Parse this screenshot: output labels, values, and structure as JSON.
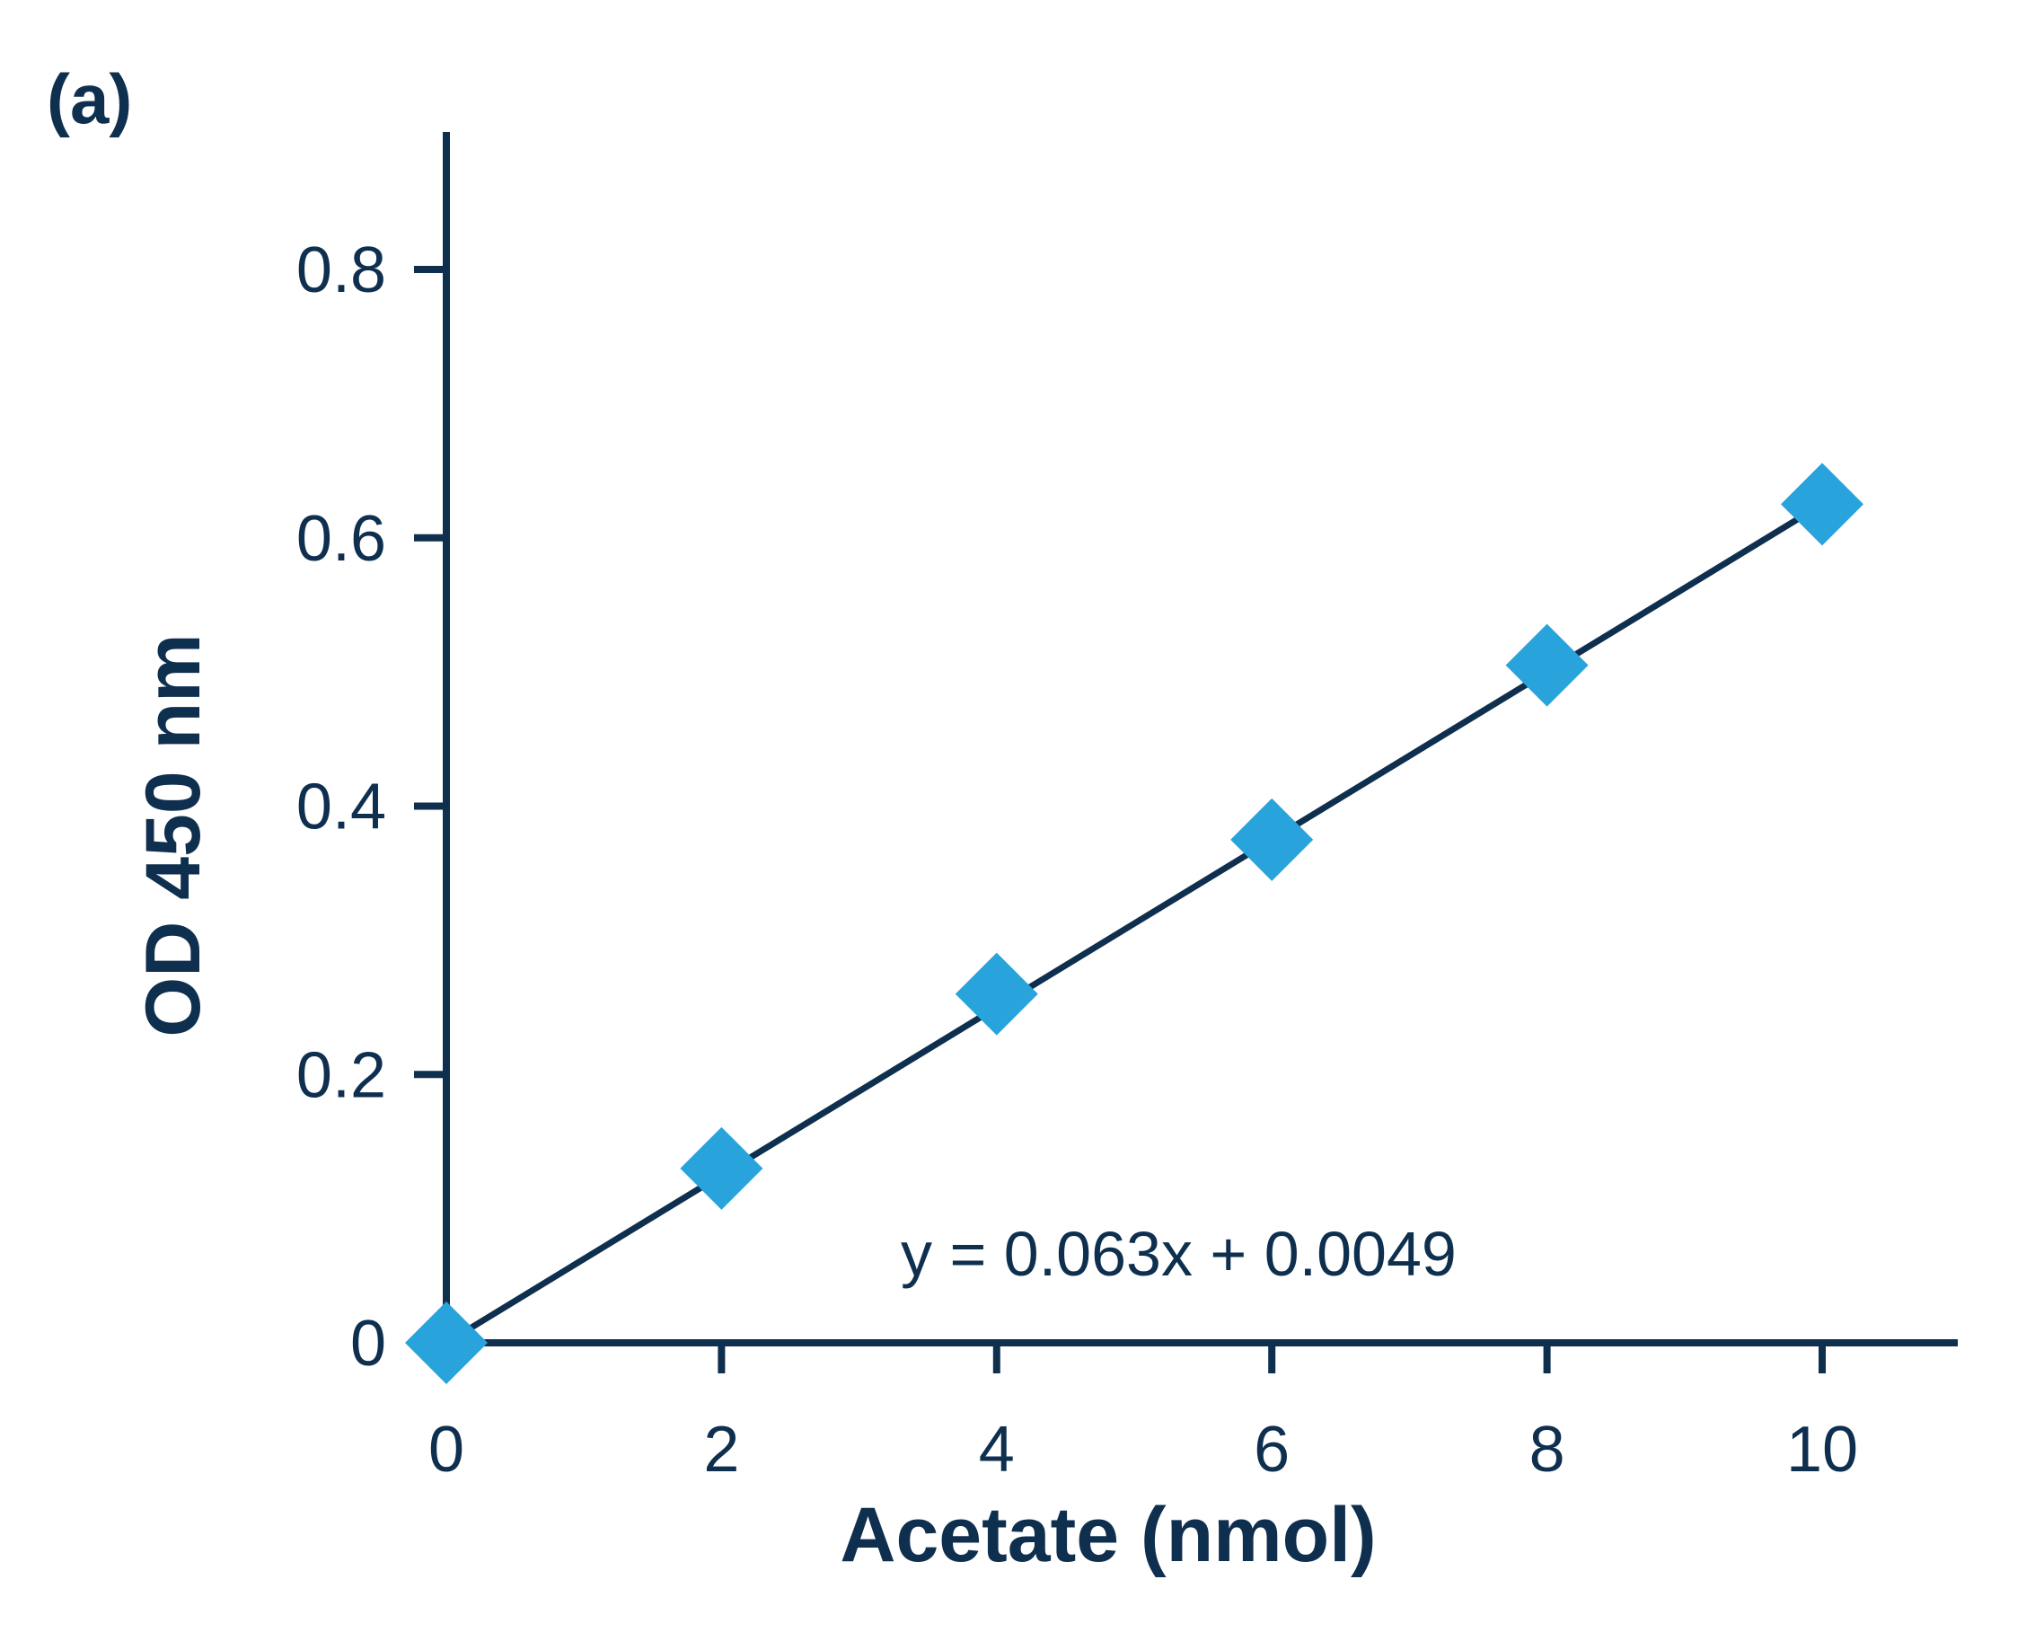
{
  "panel_label": "(a)",
  "colors": {
    "axis": "#0f2f4f",
    "line": "#0f2f4f",
    "marker": "#29a3dc",
    "text": "#0f2f4f"
  },
  "chart_data": {
    "type": "scatter",
    "marker": "diamond",
    "xlabel": "Acetate (nmol)",
    "ylabel": "OD 450 nm",
    "xlim": [
      0,
      11
    ],
    "ylim": [
      0,
      0.9
    ],
    "x_ticks": [
      0,
      2,
      4,
      6,
      8,
      10
    ],
    "x_tick_labels": [
      "0",
      "2",
      "4",
      "6",
      "8",
      "10"
    ],
    "y_ticks": [
      0,
      0.2,
      0.4,
      0.6,
      0.8
    ],
    "y_tick_labels": [
      "0",
      "0.2",
      "0.4",
      "0.6",
      "0.8"
    ],
    "series": [
      {
        "x": [
          0,
          2,
          4,
          6,
          8,
          10
        ],
        "y": [
          0.0,
          0.13,
          0.26,
          0.375,
          0.505,
          0.625
        ]
      }
    ],
    "trendline": {
      "slope": 0.063,
      "intercept": 0.0049,
      "equation": "y = 0.063x + 0.0049"
    },
    "grid": false,
    "legend": "none"
  }
}
